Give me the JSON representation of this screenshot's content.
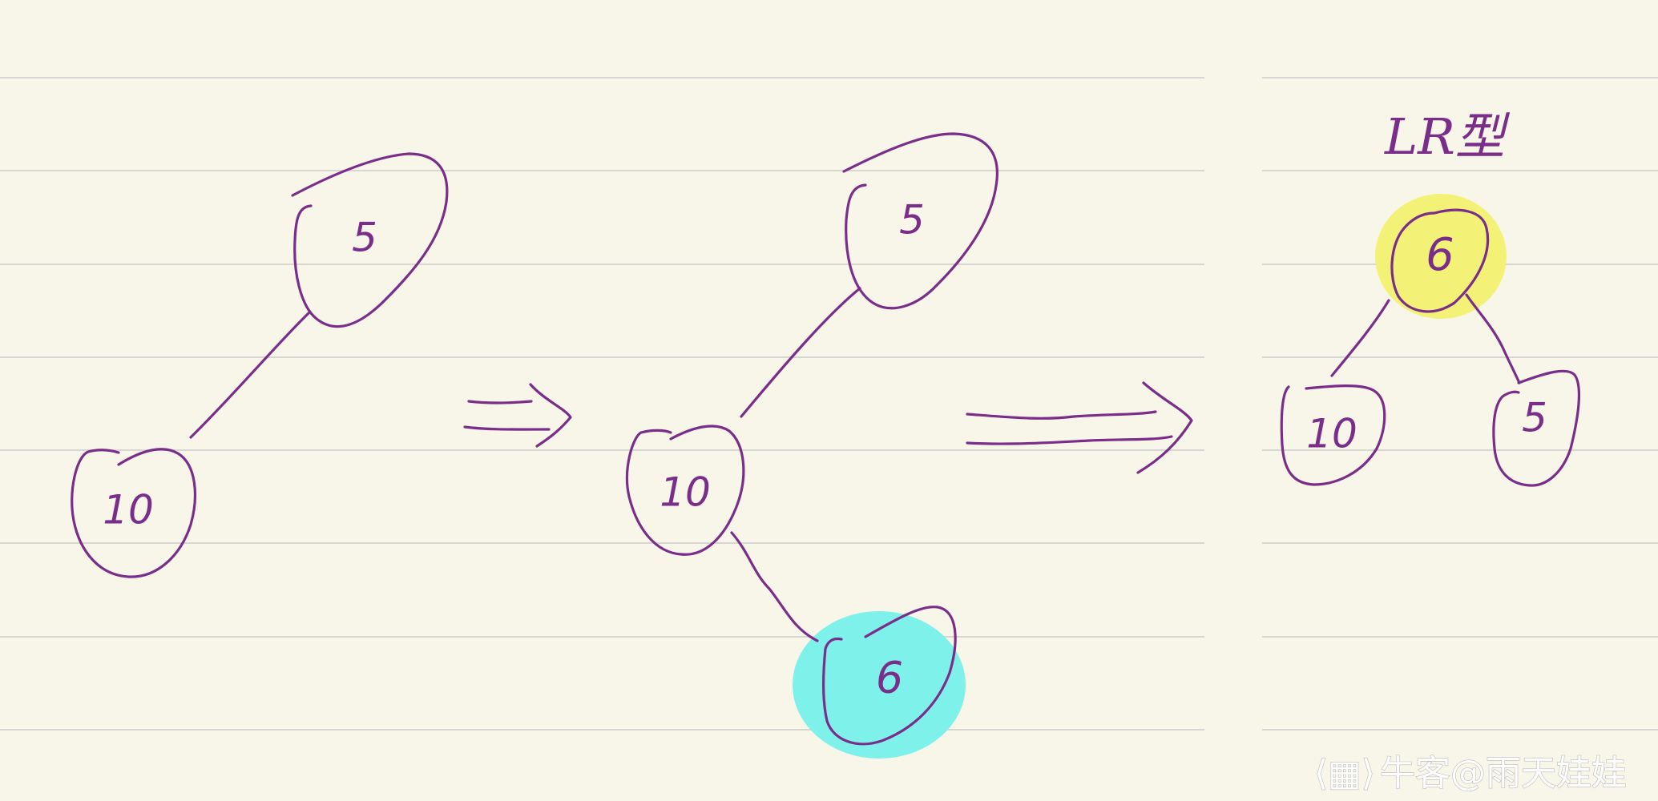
{
  "title": "LR型",
  "watermark": "牛客@雨天娃娃",
  "colors": {
    "ink": "#7a2e8a",
    "paper": "#f8f6e8",
    "rule": "#d6d6d2",
    "highlight_new": "#7ef2ea",
    "highlight_root": "#f3f176"
  },
  "steps": [
    {
      "nodes": [
        {
          "label": "5"
        },
        {
          "label": "10"
        }
      ]
    },
    {
      "nodes": [
        {
          "label": "5"
        },
        {
          "label": "10"
        },
        {
          "label": "6",
          "highlight": "new"
        }
      ]
    },
    {
      "nodes": [
        {
          "label": "6",
          "highlight": "root"
        },
        {
          "label": "10"
        },
        {
          "label": "5"
        }
      ]
    }
  ]
}
